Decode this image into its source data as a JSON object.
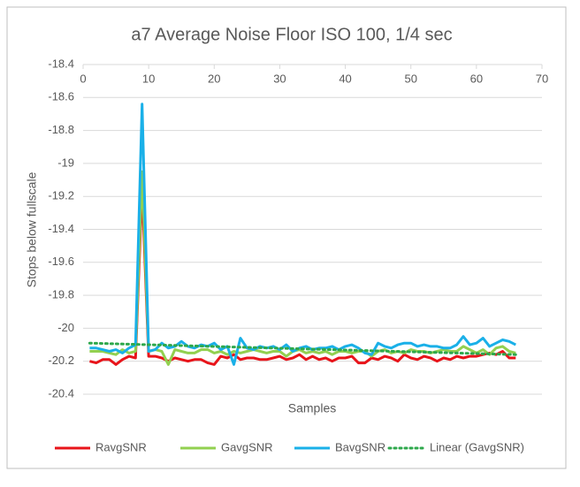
{
  "chart_data": {
    "type": "line",
    "title": "a7 Average Noise Floor ISO 100, 1/4 sec",
    "x_label": "Samples",
    "y_label": "Stops below fullscale",
    "x": [
      1,
      2,
      3,
      4,
      5,
      6,
      7,
      8,
      9,
      10,
      11,
      12,
      13,
      14,
      15,
      16,
      17,
      18,
      19,
      20,
      21,
      22,
      23,
      24,
      25,
      26,
      27,
      28,
      29,
      30,
      31,
      32,
      33,
      34,
      35,
      36,
      37,
      38,
      39,
      40,
      41,
      42,
      43,
      44,
      45,
      46,
      47,
      48,
      49,
      50,
      51,
      52,
      53,
      54,
      55,
      56,
      57,
      58,
      59,
      60,
      61,
      62,
      63,
      64,
      65,
      66
    ],
    "xlim": [
      0,
      70
    ],
    "xticks": [
      0,
      10,
      20,
      30,
      40,
      50,
      60,
      70
    ],
    "ylim": [
      -20.4,
      -18.4
    ],
    "yticks": [
      -20.4,
      -20.2,
      -20,
      -19.8,
      -19.6,
      -19.4,
      -19.2,
      -19,
      -18.8,
      -18.6,
      -18.4
    ],
    "grid": true,
    "legend": "bottom",
    "series": [
      {
        "name": "RavgSNR",
        "color": "#e8141a",
        "values": [
          -20.2,
          -20.21,
          -20.19,
          -20.19,
          -20.22,
          -20.19,
          -20.17,
          -20.18,
          -19.15,
          -20.17,
          -20.17,
          -20.18,
          -20.2,
          -20.18,
          -20.19,
          -20.2,
          -20.19,
          -20.19,
          -20.21,
          -20.22,
          -20.17,
          -20.18,
          -20.16,
          -20.19,
          -20.18,
          -20.18,
          -20.19,
          -20.19,
          -20.18,
          -20.17,
          -20.19,
          -20.18,
          -20.16,
          -20.19,
          -20.17,
          -20.19,
          -20.18,
          -20.2,
          -20.18,
          -20.18,
          -20.17,
          -20.21,
          -20.21,
          -20.18,
          -20.19,
          -20.17,
          -20.18,
          -20.2,
          -20.16,
          -20.18,
          -20.19,
          -20.17,
          -20.18,
          -20.2,
          -20.18,
          -20.19,
          -20.17,
          -20.18,
          -20.17,
          -20.17,
          -20.16,
          -20.15,
          -20.16,
          -20.14,
          -20.18,
          -20.18
        ]
      },
      {
        "name": "GavgSNR",
        "color": "#92d050",
        "values": [
          -20.14,
          -20.14,
          -20.14,
          -20.15,
          -20.16,
          -20.13,
          -20.15,
          -20.14,
          -19.05,
          -20.14,
          -20.13,
          -20.14,
          -20.22,
          -20.13,
          -20.14,
          -20.15,
          -20.15,
          -20.13,
          -20.13,
          -20.15,
          -20.14,
          -20.16,
          -20.14,
          -20.15,
          -20.14,
          -20.13,
          -20.14,
          -20.15,
          -20.14,
          -20.14,
          -20.17,
          -20.14,
          -20.13,
          -20.15,
          -20.14,
          -20.15,
          -20.14,
          -20.16,
          -20.14,
          -20.14,
          -20.15,
          -20.14,
          -20.14,
          -20.17,
          -20.14,
          -20.13,
          -20.15,
          -20.14,
          -20.15,
          -20.13,
          -20.14,
          -20.14,
          -20.15,
          -20.14,
          -20.13,
          -20.14,
          -20.14,
          -20.11,
          -20.13,
          -20.15,
          -20.13,
          -20.16,
          -20.12,
          -20.11,
          -20.14,
          -20.15
        ]
      },
      {
        "name": "BavgSNR",
        "color": "#1ab0e8",
        "values": [
          -20.12,
          -20.12,
          -20.13,
          -20.14,
          -20.13,
          -20.15,
          -20.12,
          -20.1,
          -18.64,
          -20.14,
          -20.13,
          -20.09,
          -20.12,
          -20.11,
          -20.08,
          -20.11,
          -20.12,
          -20.1,
          -20.11,
          -20.09,
          -20.13,
          -20.11,
          -20.22,
          -20.06,
          -20.12,
          -20.13,
          -20.11,
          -20.12,
          -20.11,
          -20.13,
          -20.1,
          -20.14,
          -20.12,
          -20.11,
          -20.13,
          -20.12,
          -20.12,
          -20.11,
          -20.13,
          -20.11,
          -20.1,
          -20.12,
          -20.15,
          -20.16,
          -20.09,
          -20.11,
          -20.12,
          -20.1,
          -20.09,
          -20.09,
          -20.11,
          -20.1,
          -20.11,
          -20.11,
          -20.12,
          -20.12,
          -20.1,
          -20.05,
          -20.1,
          -20.09,
          -20.06,
          -20.11,
          -20.09,
          -20.07,
          -20.08,
          -20.1
        ]
      },
      {
        "name": "Linear (GavgSNR)",
        "color": "#2ea84c",
        "dotted": true,
        "x": [
          1,
          66
        ],
        "values": [
          -20.09,
          -20.16
        ]
      }
    ]
  }
}
